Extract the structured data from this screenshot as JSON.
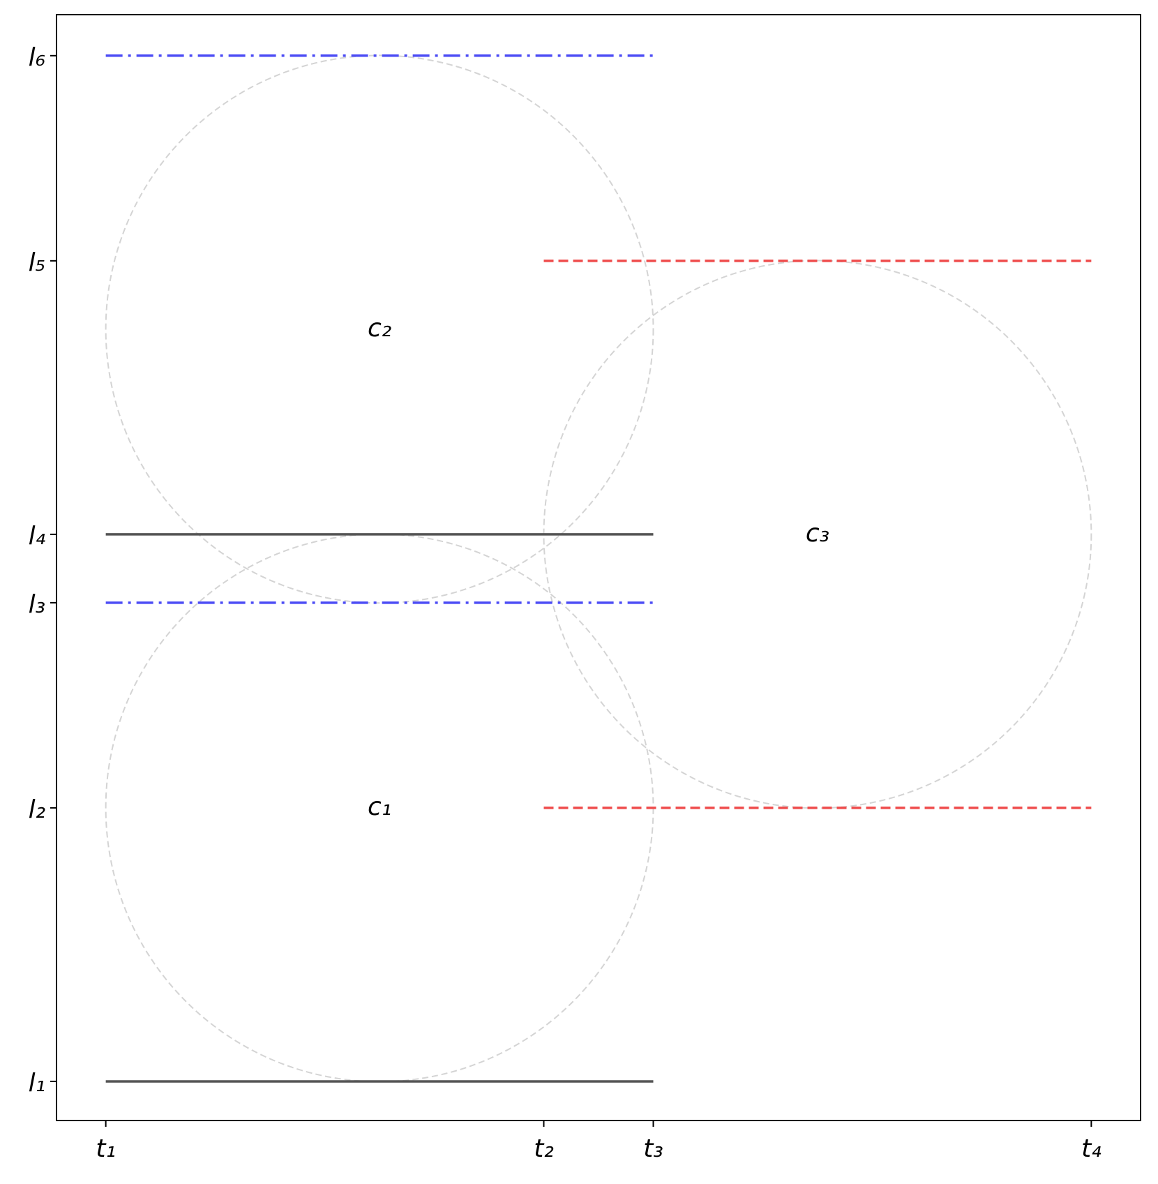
{
  "chart_data": {
    "type": "line",
    "xlim": [
      -0.18,
      3.78
    ],
    "ylim": [
      -0.143,
      3.9
    ],
    "xticks": [
      {
        "value": 0,
        "label": "t₁"
      },
      {
        "value": 1.6,
        "label": "t₂"
      },
      {
        "value": 2.0,
        "label": "t₃"
      },
      {
        "value": 3.6,
        "label": "t₄"
      }
    ],
    "yticks": [
      {
        "value": 0,
        "label": "l₁"
      },
      {
        "value": 1.0,
        "label": "l₂"
      },
      {
        "value": 1.75,
        "label": "l₃"
      },
      {
        "value": 2.0,
        "label": "l₄"
      },
      {
        "value": 3.0,
        "label": "l₅"
      },
      {
        "value": 3.75,
        "label": "l₆"
      }
    ],
    "segments": [
      {
        "x": [
          0,
          2.0
        ],
        "y": [
          0,
          0
        ],
        "color": "#555555",
        "style": "solid"
      },
      {
        "x": [
          0,
          2.0
        ],
        "y": [
          2.0,
          2.0
        ],
        "color": "#555555",
        "style": "solid"
      },
      {
        "x": [
          0,
          2.0
        ],
        "y": [
          1.75,
          1.75
        ],
        "color": "#4b4bf5",
        "style": "dashdot"
      },
      {
        "x": [
          0,
          2.0
        ],
        "y": [
          3.75,
          3.75
        ],
        "color": "#4b4bf5",
        "style": "dashdot"
      },
      {
        "x": [
          1.6,
          3.6
        ],
        "y": [
          1.0,
          1.0
        ],
        "color": "#ef4b4b",
        "style": "dashed"
      },
      {
        "x": [
          1.6,
          3.6
        ],
        "y": [
          3.0,
          3.0
        ],
        "color": "#ef4b4b",
        "style": "dashed"
      }
    ],
    "circles": [
      {
        "label": "c₁",
        "x": 1.0,
        "y": 1.0,
        "r": 1.0
      },
      {
        "label": "c₂",
        "x": 1.0,
        "y": 2.75,
        "r": 1.0
      },
      {
        "label": "c₃",
        "x": 2.6,
        "y": 2.0,
        "r": 1.0
      }
    ],
    "circle_color": "#d4d4d4"
  }
}
